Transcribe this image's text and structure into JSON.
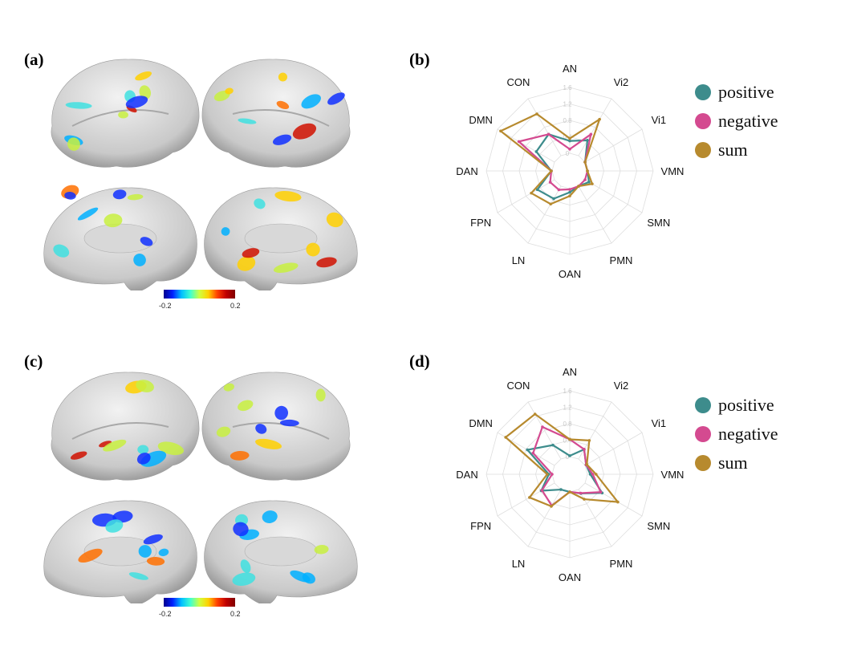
{
  "panels": {
    "a": {
      "label": "(a)",
      "colorbar": {
        "min": "-0.2",
        "max": "0.2",
        "colormap": "jet"
      }
    },
    "b": {
      "label": "(b)"
    },
    "c": {
      "label": "(c)",
      "colorbar": {
        "min": "-0.2",
        "max": "0.2",
        "colormap": "jet"
      }
    },
    "d": {
      "label": "(d)"
    }
  },
  "legend": [
    {
      "name": "positive",
      "color": "#3d8c8c"
    },
    {
      "name": "negative",
      "color": "#d44a90"
    },
    {
      "name": "sum",
      "color": "#b78a2e"
    }
  ],
  "chart_data": [
    {
      "type": "radar",
      "panel": "b",
      "axes": [
        "AN",
        "Vi2",
        "Vi1",
        "VMN",
        "SMN",
        "PMN",
        "OAN",
        "LN",
        "FPN",
        "DAN",
        "DMN",
        "CON"
      ],
      "rticks": [
        "0",
        "0.4",
        "0.8",
        "1.2",
        "1.6"
      ],
      "rlim": [
        0,
        1.6
      ],
      "grid": true,
      "legend_position": "right",
      "series": [
        {
          "name": "positive",
          "values": [
            0.3,
            0.43,
            0.0,
            0.0,
            0.11,
            0.0,
            0.09,
            0.35,
            0.48,
            0.02,
            0.51,
            0.6
          ]
        },
        {
          "name": "negative",
          "values": [
            0.1,
            0.6,
            0.0,
            0.0,
            0.0,
            0.0,
            0.02,
            0.1,
            0.12,
            0.02,
            1.0,
            0.6
          ]
        },
        {
          "name": "sum",
          "values": [
            0.36,
            1.02,
            0.0,
            0.0,
            0.2,
            0.0,
            0.18,
            0.5,
            0.65,
            0.02,
            1.51,
            1.17
          ]
        }
      ]
    },
    {
      "type": "radar",
      "panel": "d",
      "axes": [
        "AN",
        "Vi2",
        "Vi1",
        "VMN",
        "SMN",
        "PMN",
        "OAN",
        "LN",
        "FPN",
        "DAN",
        "DMN",
        "CON"
      ],
      "rticks": [
        "0",
        "0.4",
        "0.8",
        "1.2",
        "1.6"
      ],
      "rlim": [
        0,
        1.6
      ],
      "grid": true,
      "legend_position": "right",
      "series": [
        {
          "name": "positive",
          "values": [
            0.02,
            0.27,
            0.03,
            0.07,
            0.48,
            0.11,
            0.0,
            0.0,
            0.37,
            0.08,
            0.76,
            0.39
          ]
        },
        {
          "name": "negative",
          "values": [
            0.42,
            0.27,
            0.03,
            0.13,
            0.44,
            0.1,
            0.0,
            0.45,
            0.35,
            0.0,
            0.6,
            0.9
          ]
        },
        {
          "name": "sum",
          "values": [
            0.42,
            0.52,
            0.05,
            0.21,
            0.92,
            0.27,
            0.0,
            0.47,
            0.7,
            0.12,
            1.37,
            1.26
          ]
        }
      ]
    }
  ]
}
